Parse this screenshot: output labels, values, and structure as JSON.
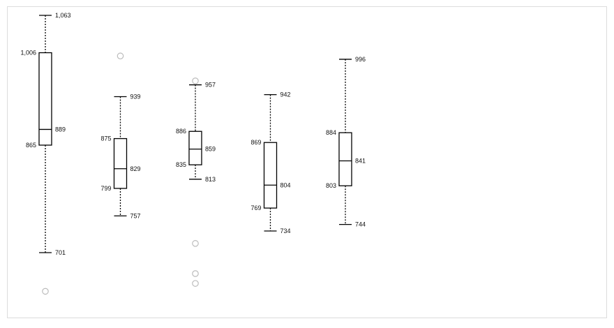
{
  "chart_data": {
    "type": "box",
    "title": "",
    "xlabel": "",
    "ylabel": "",
    "grid": false,
    "legend": "none",
    "colors": {
      "box_stroke": "#000000",
      "whisker": "#000000",
      "outlier": "#bbbbbb",
      "text": "#111111"
    },
    "boxes": [
      {
        "min": 701,
        "q1": 865,
        "median": 889,
        "q3": 1006,
        "max": 1063,
        "outliers": [
          642
        ],
        "labels": {
          "min": "701",
          "q1": "865",
          "median": "889",
          "q3": "1,006",
          "max": "1,063"
        }
      },
      {
        "min": 757,
        "q1": 799,
        "median": 829,
        "q3": 875,
        "max": 939,
        "outliers": [
          1001
        ],
        "labels": {
          "min": "757",
          "q1": "799",
          "median": "829",
          "q3": "875",
          "max": "939"
        }
      },
      {
        "min": 813,
        "q1": 835,
        "median": 859,
        "q3": 886,
        "max": 957,
        "outliers": [
          963,
          715,
          669,
          654
        ],
        "labels": {
          "min": "813",
          "q1": "835",
          "median": "859",
          "q3": "886",
          "max": "957"
        }
      },
      {
        "min": 734,
        "q1": 769,
        "median": 804,
        "q3": 869,
        "max": 942,
        "outliers": [],
        "labels": {
          "min": "734",
          "q1": "769",
          "median": "804",
          "q3": "869",
          "max": "942"
        }
      },
      {
        "min": 744,
        "q1": 803,
        "median": 841,
        "q3": 884,
        "max": 996,
        "outliers": [],
        "labels": {
          "min": "744",
          "q1": "803",
          "median": "841",
          "q3": "884",
          "max": "996"
        }
      }
    ]
  }
}
